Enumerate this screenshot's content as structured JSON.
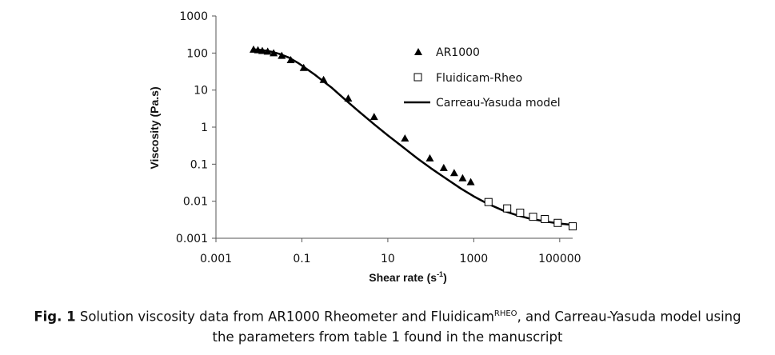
{
  "chart_data": {
    "type": "scatter",
    "xscale": "log",
    "yscale": "log",
    "xlim": [
      0.001,
      200000
    ],
    "ylim": [
      0.001,
      1000
    ],
    "xticks": [
      0.001,
      0.1,
      10,
      1000,
      100000
    ],
    "xtick_labels": [
      "0.001",
      "0.1",
      "10",
      "1000",
      "100000"
    ],
    "yticks": [
      0.001,
      0.01,
      0.1,
      1,
      10,
      100,
      1000
    ],
    "ytick_labels": [
      "0.001",
      "0.01",
      "0.1",
      "1",
      "10",
      "100",
      "1000"
    ],
    "xlabel": "Shear rate (s",
    "xlabel_sup": "-1",
    "xlabel_end": ")",
    "ylabel": "Viscosity (Pa.s)",
    "grid": false,
    "legend_position": "top-right",
    "series": [
      {
        "name": "AR1000",
        "marker": "filled-triangle",
        "color": "#000000",
        "x": [
          0.0075,
          0.0095,
          0.012,
          0.016,
          0.022,
          0.034,
          0.055,
          0.11,
          0.32,
          1.2,
          4.8,
          25,
          95,
          200,
          350,
          550,
          850
        ],
        "y": [
          125,
          120,
          115,
          110,
          100,
          85,
          65,
          40,
          19,
          6,
          1.9,
          0.5,
          0.145,
          0.08,
          0.058,
          0.042,
          0.033
        ]
      },
      {
        "name": "Fluidicam-Rheo",
        "marker": "open-square",
        "color": "#000000",
        "x": [
          2200,
          6000,
          12000,
          24000,
          45000,
          90000,
          200000
        ],
        "y": [
          0.0095,
          0.0064,
          0.0049,
          0.0038,
          0.0033,
          0.0026,
          0.0021
        ]
      },
      {
        "name": "Carreau-Yasuda model",
        "marker": "line",
        "color": "#000000",
        "x": [
          0.0075,
          0.01,
          0.015,
          0.02,
          0.03,
          0.05,
          0.08,
          0.1,
          0.2,
          0.3,
          0.5,
          1,
          2,
          5,
          10,
          20,
          50,
          100,
          200,
          500,
          1000,
          2000,
          5000,
          10000,
          20000,
          50000,
          100000,
          200000
        ],
        "y": [
          125,
          122,
          115,
          108,
          95,
          75,
          55,
          46,
          26,
          18,
          11.5,
          5.6,
          2.8,
          1.15,
          0.6,
          0.32,
          0.14,
          0.078,
          0.045,
          0.022,
          0.0135,
          0.0088,
          0.0055,
          0.0042,
          0.0034,
          0.0028,
          0.0025,
          0.0023
        ]
      }
    ]
  },
  "caption": {
    "label": "Fig. 1",
    "text_before_sup": " Solution viscosity data from AR1000 Rheometer and Fluidicam",
    "sup": "RHEO",
    "text_after_sup": ", and Carreau-Yasuda model using",
    "line2": "the parameters from table 1 found in the manuscript"
  }
}
